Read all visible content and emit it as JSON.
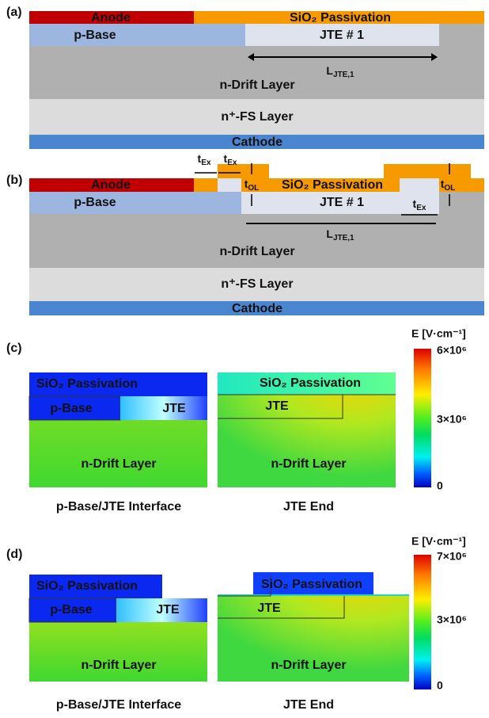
{
  "panel_a": {
    "label": "(a)",
    "anode": "Anode",
    "passivation": "SiO₂ Passivation",
    "p_base": "p-Base",
    "jte": "JTE # 1",
    "drift": "n-Drift Layer",
    "field_stop": "n⁺-FS Layer",
    "cathode": "Cathode",
    "length": {
      "main": "L",
      "sub": "JTE,1"
    }
  },
  "panel_b": {
    "label": "(b)",
    "anode": "Anode",
    "passivation": "SiO₂ Passivation",
    "p_base": "p-Base",
    "jte": "JTE # 1",
    "drift": "n-Drift Layer",
    "field_stop": "n⁺-FS Layer",
    "cathode": "Cathode",
    "length": {
      "main": "L",
      "sub": "JTE,1"
    },
    "t_ex": {
      "main": "t",
      "sub": "Ex"
    },
    "t_ol": {
      "main": "t",
      "sub": "OL"
    }
  },
  "panel_c": {
    "label": "(c)",
    "left": {
      "passivation": "SiO₂ Passivation",
      "p_base": "p-Base",
      "jte": "JTE",
      "drift": "n-Drift Layer",
      "caption": "p-Base/JTE Interface"
    },
    "right": {
      "passivation": "SiO₂ Passivation",
      "jte": "JTE",
      "drift": "n-Drift Layer",
      "caption": "JTE End"
    },
    "colorbar": {
      "title": "E [V·cm⁻¹]",
      "max": "6×10⁶",
      "mid": "3×10⁶",
      "min": "0"
    }
  },
  "panel_d": {
    "label": "(d)",
    "left": {
      "passivation": "SiO₂ Passivation",
      "p_base": "p-Base",
      "jte": "JTE",
      "drift": "n-Drift Layer",
      "caption": "p-Base/JTE Interface"
    },
    "right": {
      "passivation": "SiO₂ Passivation",
      "jte": "JTE",
      "drift": "n-Drift Layer",
      "caption": "JTE End"
    },
    "colorbar": {
      "title": "E [V·cm⁻¹]",
      "max": "7×10⁶",
      "mid": "3×10⁶",
      "min": "0"
    }
  }
}
